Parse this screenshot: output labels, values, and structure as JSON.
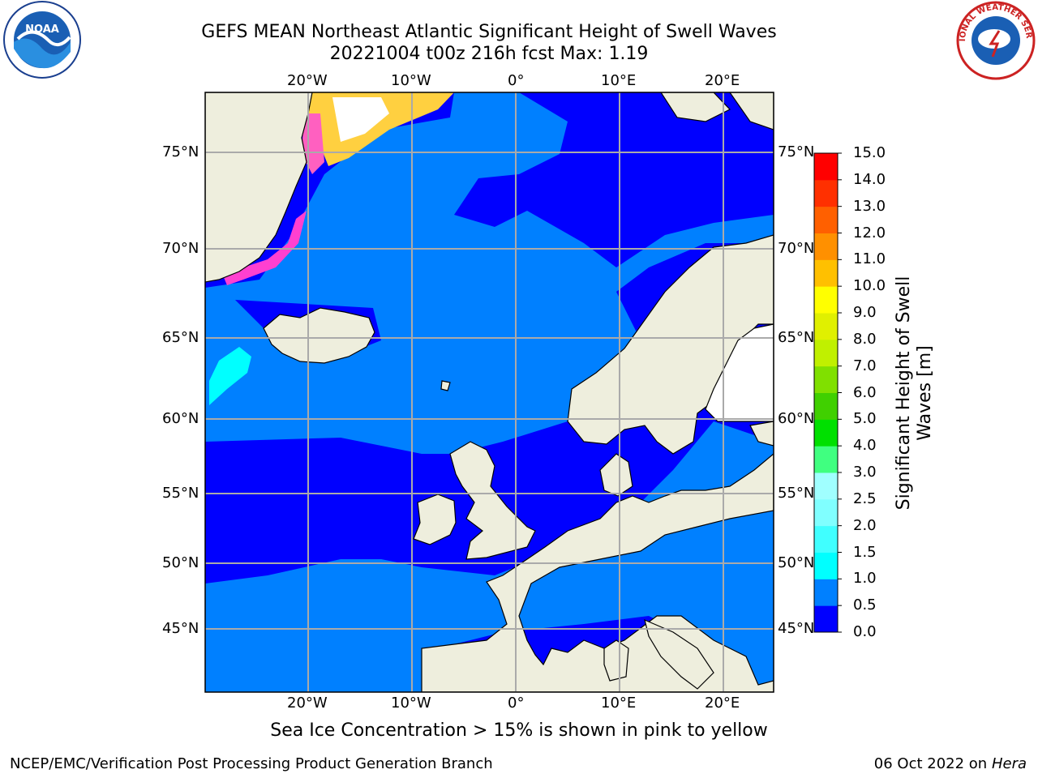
{
  "header": {
    "title_line1": "GEFS MEAN Northeast Atlantic Significant Height of Swell Waves",
    "title_line2": "20221004 t00z 216h fcst   Max: 1.19"
  },
  "logos": {
    "left": "NOAA",
    "right": "NATIONAL WEATHER SERVICE"
  },
  "map": {
    "lon_labels": [
      "20°W",
      "10°W",
      "0°",
      "10°E",
      "20°E"
    ],
    "lat_labels": [
      "75°N",
      "70°N",
      "65°N",
      "60°N",
      "55°N",
      "50°N",
      "45°N"
    ],
    "ice_note": "Sea Ice Concentration > 15% is shown in pink to yellow"
  },
  "colorbar": {
    "title_line1": "Significant Height of Swell",
    "title_line2": "Waves [m]",
    "ticks": [
      "0.0",
      "0.5",
      "1.0",
      "1.5",
      "2.0",
      "2.5",
      "3.0",
      "4.0",
      "5.0",
      "6.0",
      "7.0",
      "8.0",
      "9.0",
      "10.0",
      "11.0",
      "12.0",
      "13.0",
      "14.0",
      "15.0"
    ],
    "colors": [
      "#0000ff",
      "#0080ff",
      "#00ffff",
      "#40ffff",
      "#80ffff",
      "#a0ffff",
      "#40ff80",
      "#00e000",
      "#40d000",
      "#80e000",
      "#c0f000",
      "#e0f000",
      "#ffff00",
      "#ffc000",
      "#ff9000",
      "#ff6000",
      "#ff3000",
      "#ff0000"
    ]
  },
  "footer": {
    "left": "NCEP/EMC/Verification Post Processing Product Generation Branch",
    "date": "06 Oct 2022 on ",
    "host": "Hera"
  },
  "colors": {
    "land": "#eeeedd",
    "ocean_low": "#0000ff",
    "ocean_mid": "#0080ff",
    "ice_pink": "#ff40c0",
    "ice_yellow": "#ffff40"
  }
}
